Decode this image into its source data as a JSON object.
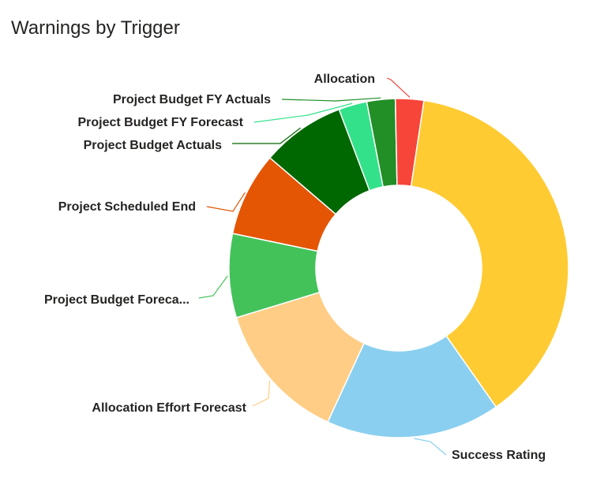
{
  "chart_data": {
    "type": "pie",
    "donut": true,
    "title": "Warnings by Trigger",
    "legend": "none",
    "slices": [
      {
        "name": "Success Rating",
        "value": 16.6,
        "color": "#8ACFEF",
        "line_color": "#8ACFEF"
      },
      {
        "name": "Allocation Effort Forecast",
        "value": 13.4,
        "color": "#FFCD85",
        "line_color": "#FFCD85"
      },
      {
        "name": "Project Budget Foreca...",
        "value": 8.0,
        "color": "#43C25A",
        "line_color": "#43C25A"
      },
      {
        "name": "Project Scheduled End",
        "value": 8.0,
        "color": "#E45504",
        "line_color": "#E45504"
      },
      {
        "name": "Project Budget Actuals",
        "value": 8.0,
        "color": "#006800",
        "line_color": "#006800"
      },
      {
        "name": "Project Budget FY Forecast",
        "value": 2.7,
        "color": "#33E18A",
        "line_color": "#33E18A"
      },
      {
        "name": "Project Budget FY Actuals",
        "value": 2.7,
        "color": "#218E26",
        "line_color": "#218E26"
      },
      {
        "name": "Allocation",
        "value": 2.7,
        "color": "#F7453A",
        "line_color": "#F7453A"
      },
      {
        "name": "",
        "value": 37.9,
        "color": "#FFCB33",
        "line_color": "#FFCB33"
      }
    ]
  }
}
